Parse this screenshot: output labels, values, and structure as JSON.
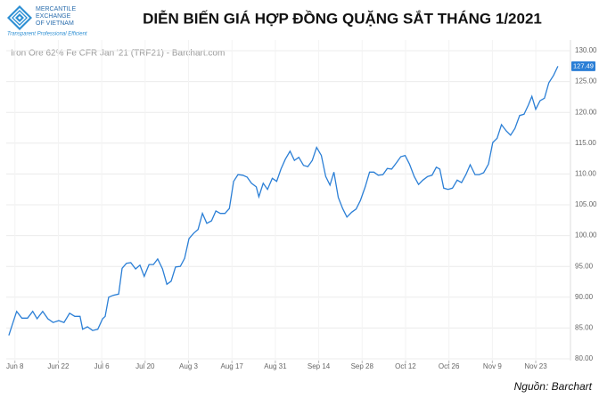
{
  "header": {
    "logo_lines": [
      "MERCANTILE",
      "EXCHANGE",
      "OF VIETNAM"
    ],
    "tagline": "Transparent Professional Efficient"
  },
  "source": "Nguồn: Barchart",
  "chart_data": {
    "type": "line",
    "title": "DIỄN BIẾN GIÁ HỢP ĐỒNG QUẶNG SẮT THÁNG 1/2021",
    "subtitle": "Iron Ore 62% Fe CFR Jan '21 (TRF21) - Barchart.com",
    "x": [
      -1.4,
      -0.8,
      0.4,
      1.6,
      2.9,
      4.1,
      5.1,
      6.4,
      7.6,
      8.8,
      10.1,
      11.3,
      12.6,
      13.8,
      15.0,
      15.6,
      16.7,
      17.9,
      19.1,
      20.2,
      20.8,
      21.6,
      22.6,
      23.9,
      24.7,
      25.7,
      26.7,
      27.8,
      28.8,
      29.8,
      30.9,
      31.9,
      32.9,
      34.0,
      35.0,
      36.0,
      37.0,
      38.1,
      39.1,
      40.1,
      41.2,
      42.2,
      43.2,
      44.2,
      45.3,
      46.3,
      47.3,
      48.4,
      49.4,
      50.4,
      51.4,
      52.5,
      53.5,
      54.5,
      55.6,
      56.2,
      57.2,
      58.2,
      59.3,
      60.3,
      61.3,
      62.3,
      63.4,
      64.4,
      65.4,
      66.5,
      67.5,
      68.5,
      69.5,
      70.6,
      71.6,
      72.6,
      73.5,
      74.5,
      75.5,
      76.5,
      77.6,
      78.6,
      79.6,
      80.7,
      81.7,
      82.7,
      83.7,
      84.8,
      85.8,
      86.8,
      87.9,
      88.9,
      89.9,
      90.9,
      92.0,
      93.0,
      94.0,
      95.1,
      96.1,
      97.1,
      97.9,
      98.8,
      99.8,
      100.8,
      101.9,
      102.9,
      103.9,
      104.9,
      106.0,
      107.0,
      108.0,
      109.1,
      110.1,
      111.1,
      112.1,
      113.2,
      114.2,
      115.2,
      116.3,
      117.3,
      118.3,
      119.1,
      120.0,
      121.0,
      122.0,
      123.0,
      124.1,
      125.1
    ],
    "series": [
      {
        "color": "#2b7fd6",
        "values": [
          83.8,
          85.1,
          87.7,
          86.6,
          86.6,
          87.7,
          86.5,
          87.7,
          86.5,
          85.9,
          86.2,
          85.9,
          87.4,
          86.9,
          86.9,
          84.8,
          85.2,
          84.6,
          84.8,
          86.5,
          86.9,
          90.0,
          90.3,
          90.5,
          94.7,
          95.5,
          95.6,
          94.6,
          95.2,
          93.4,
          95.3,
          95.3,
          96.2,
          94.6,
          92.1,
          92.6,
          94.9,
          95.0,
          96.3,
          99.5,
          100.4,
          101.0,
          103.6,
          102.0,
          102.4,
          104.0,
          103.6,
          103.6,
          104.4,
          108.8,
          109.9,
          109.8,
          109.5,
          108.5,
          107.9,
          106.3,
          108.5,
          107.5,
          109.3,
          108.8,
          110.8,
          112.4,
          113.7,
          112.2,
          112.7,
          111.4,
          111.2,
          112.2,
          114.3,
          113.0,
          109.6,
          108.2,
          110.3,
          106.2,
          104.4,
          103.0,
          103.8,
          104.3,
          105.7,
          107.9,
          110.3,
          110.3,
          109.8,
          109.9,
          110.9,
          110.8,
          111.8,
          112.8,
          113.0,
          111.6,
          109.6,
          108.3,
          109.0,
          109.6,
          109.8,
          111.1,
          110.8,
          107.7,
          107.5,
          107.7,
          109.0,
          108.6,
          109.9,
          111.5,
          109.9,
          109.9,
          110.2,
          111.6,
          115.1,
          115.8,
          118.0,
          117.0,
          116.3,
          117.4,
          119.5,
          119.7,
          121.2,
          122.6,
          120.5,
          121.9,
          122.3,
          124.8,
          126.0,
          127.49
        ]
      }
    ],
    "xlim": [
      -2,
      128
    ],
    "xticks": [
      {
        "value": 0,
        "label": "Jun 8"
      },
      {
        "value": 10,
        "label": "Jun 22"
      },
      {
        "value": 20,
        "label": "Jul 6"
      },
      {
        "value": 30,
        "label": "Jul 20"
      },
      {
        "value": 40,
        "label": "Aug 3"
      },
      {
        "value": 50,
        "label": "Aug 17"
      },
      {
        "value": 60,
        "label": "Aug 31"
      },
      {
        "value": 70,
        "label": "Sep 14"
      },
      {
        "value": 80,
        "label": "Sep 28"
      },
      {
        "value": 90,
        "label": "Oct 12"
      },
      {
        "value": 100,
        "label": "Oct 26"
      },
      {
        "value": 110,
        "label": "Nov 9"
      },
      {
        "value": 120,
        "label": "Nov 23"
      }
    ],
    "ylim": [
      80,
      130
    ],
    "yticks": [
      {
        "value": 80,
        "label": "80.00"
      },
      {
        "value": 85,
        "label": "85.00"
      },
      {
        "value": 90,
        "label": "90.00"
      },
      {
        "value": 95,
        "label": "95.00"
      },
      {
        "value": 100,
        "label": "100.00"
      },
      {
        "value": 105,
        "label": "105.00"
      },
      {
        "value": 110,
        "label": "110.00"
      },
      {
        "value": 115,
        "label": "115.00"
      },
      {
        "value": 120,
        "label": "120.00"
      },
      {
        "value": 125,
        "label": "125.00"
      },
      {
        "value": 130,
        "label": "130.00"
      }
    ],
    "grid": true
  }
}
